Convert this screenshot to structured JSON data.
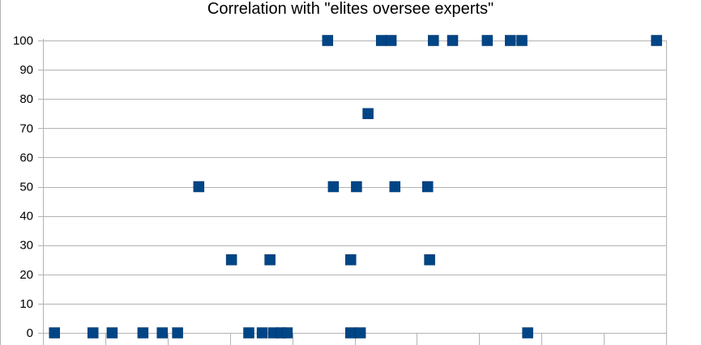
{
  "chart_data": {
    "type": "scatter",
    "title": "Correlation with \"elites oversee experts\"",
    "xlabel": "",
    "ylabel": "",
    "ylim": [
      0,
      100
    ],
    "yticks": [
      0,
      10,
      20,
      30,
      40,
      50,
      60,
      70,
      80,
      90,
      100
    ],
    "grid": true,
    "legend": "none",
    "marker": "square",
    "colors": {
      "marker": "#004586",
      "grid": "#b3b3b3",
      "axis": "#b3b3b3"
    },
    "series": [
      {
        "points": [
          {
            "x": 1.0,
            "y": 0
          },
          {
            "x": 2.0,
            "y": 0
          },
          {
            "x": 2.5,
            "y": 0
          },
          {
            "x": 3.3,
            "y": 0
          },
          {
            "x": 3.8,
            "y": 0
          },
          {
            "x": 4.2,
            "y": 0
          },
          {
            "x": 4.75,
            "y": 50
          },
          {
            "x": 5.6,
            "y": 25
          },
          {
            "x": 6.05,
            "y": 0
          },
          {
            "x": 6.4,
            "y": 0
          },
          {
            "x": 6.6,
            "y": 25
          },
          {
            "x": 6.7,
            "y": 0
          },
          {
            "x": 6.9,
            "y": 0
          },
          {
            "x": 7.05,
            "y": 0
          },
          {
            "x": 8.1,
            "y": 100
          },
          {
            "x": 8.25,
            "y": 50
          },
          {
            "x": 8.7,
            "y": 25
          },
          {
            "x": 8.7,
            "y": 0
          },
          {
            "x": 8.85,
            "y": 50
          },
          {
            "x": 8.95,
            "y": 0
          },
          {
            "x": 9.15,
            "y": 75
          },
          {
            "x": 9.5,
            "y": 100
          },
          {
            "x": 9.75,
            "y": 100
          },
          {
            "x": 9.85,
            "y": 50
          },
          {
            "x": 10.7,
            "y": 50
          },
          {
            "x": 10.75,
            "y": 25
          },
          {
            "x": 10.85,
            "y": 100
          },
          {
            "x": 11.35,
            "y": 100
          },
          {
            "x": 12.25,
            "y": 100
          },
          {
            "x": 12.85,
            "y": 100
          },
          {
            "x": 13.15,
            "y": 100
          },
          {
            "x": 13.3,
            "y": 0
          },
          {
            "x": 16.65,
            "y": 100
          }
        ]
      }
    ]
  }
}
